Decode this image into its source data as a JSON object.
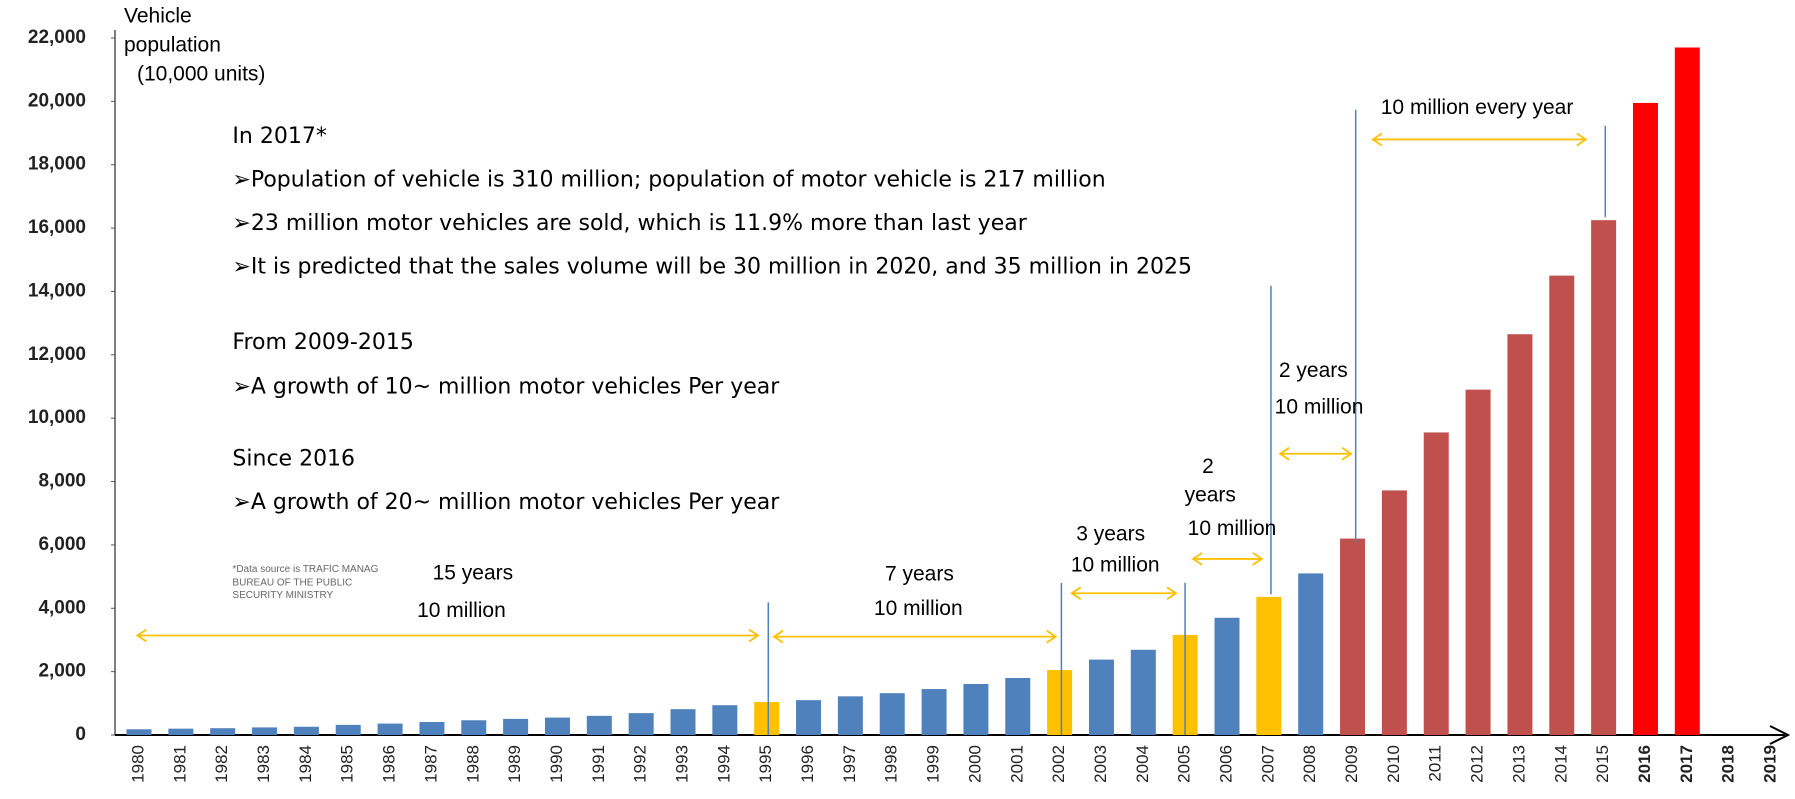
{
  "chart_data": {
    "type": "bar",
    "ylabel": [
      "Vehicle",
      "population",
      "(10,000 units)"
    ],
    "categories": [
      "1980",
      "1981",
      "1982",
      "1983",
      "1984",
      "1985",
      "1986",
      "1987",
      "1988",
      "1989",
      "1990",
      "1991",
      "1992",
      "1993",
      "1994",
      "1995",
      "1996",
      "1997",
      "1998",
      "1999",
      "2000",
      "2001",
      "2002",
      "2003",
      "2004",
      "2005",
      "2006",
      "2007",
      "2008",
      "2009",
      "2010",
      "2011",
      "2012",
      "2013",
      "2014",
      "2015",
      "2016",
      "2017",
      "2018",
      "2019"
    ],
    "values": [
      180,
      200,
      215,
      240,
      260,
      320,
      360,
      410,
      465,
      510,
      550,
      605,
      690,
      815,
      940,
      1040,
      1100,
      1220,
      1320,
      1450,
      1610,
      1800,
      2050,
      2380,
      2690,
      3160,
      3700,
      4360,
      5100,
      6200,
      7720,
      9550,
      10900,
      12650,
      14500,
      16250,
      19950,
      21700,
      null,
      null
    ],
    "colors": [
      "#4f81bd",
      "#4f81bd",
      "#4f81bd",
      "#4f81bd",
      "#4f81bd",
      "#4f81bd",
      "#4f81bd",
      "#4f81bd",
      "#4f81bd",
      "#4f81bd",
      "#4f81bd",
      "#4f81bd",
      "#4f81bd",
      "#4f81bd",
      "#4f81bd",
      "#ffc000",
      "#4f81bd",
      "#4f81bd",
      "#4f81bd",
      "#4f81bd",
      "#4f81bd",
      "#4f81bd",
      "#ffc000",
      "#4f81bd",
      "#4f81bd",
      "#ffc000",
      "#4f81bd",
      "#ffc000",
      "#4f81bd",
      "#c0504d",
      "#c0504d",
      "#c0504d",
      "#c0504d",
      "#c0504d",
      "#c0504d",
      "#c0504d",
      "#ff0000",
      "#ff0000",
      null,
      null
    ],
    "ylim": [
      0,
      22000
    ],
    "yticks": [
      0,
      {
        "value": 2000,
        "label": "2,000"
      },
      {
        "value": 4000,
        "label": "4,000"
      },
      {
        "value": 6000,
        "label": "6,000"
      },
      {
        "value": 8000,
        "label": "8,000"
      },
      {
        "value": 10000,
        "label": "10,000"
      },
      {
        "value": 12000,
        "label": "12,000"
      },
      {
        "value": 14000,
        "label": "14,000"
      },
      {
        "value": 16000,
        "label": "16,000"
      },
      {
        "value": 18000,
        "label": "18,000"
      },
      {
        "value": 20000,
        "label": "20,000"
      },
      {
        "value": 22000,
        "label": "22,000"
      }
    ],
    "notes": [
      "In 2017*",
      "➢Population of vehicle is 310 million; population of motor vehicle is 217 million",
      "➢23 million motor vehicles are sold, which is 11.9% more than last year",
      "➢It is predicted that  the sales volume will be 30 million in 2020, and 35 million in 2025",
      "From 2009-2015",
      "➢A growth of 10~ million motor vehicles Per year",
      "Since 2016",
      "➢A growth of 20~ million motor vehicles Per year"
    ],
    "source": [
      "*Data source is TRAFIC MANAG",
      "BUREAU OF THE PUBLIC",
      "SECURITY MINISTRY"
    ],
    "annotations": [
      "15 years",
      "10 million",
      "7 years",
      "10 million",
      "3 years",
      "10 million",
      "2",
      "years",
      "10 million",
      "2 years",
      "10 million",
      "10 million every year"
    ]
  }
}
